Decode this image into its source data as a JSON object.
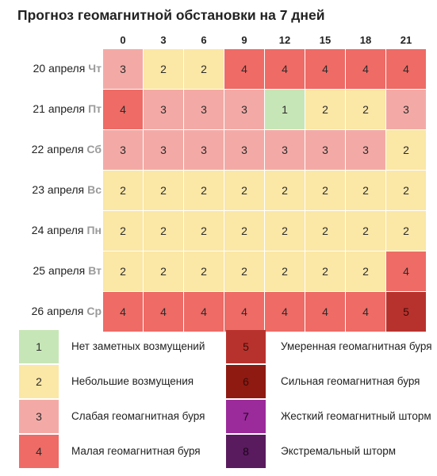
{
  "chart_data": {
    "type": "heatmap",
    "title": "Прогноз геомагнитной обстановки на 7 дней",
    "hours": [
      "0",
      "3",
      "6",
      "9",
      "12",
      "15",
      "18",
      "21"
    ],
    "rows": [
      {
        "date": "20 апреля",
        "weekday": "Чт",
        "values": [
          3,
          2,
          2,
          4,
          4,
          4,
          4,
          4
        ]
      },
      {
        "date": "21 апреля",
        "weekday": "Пт",
        "values": [
          4,
          3,
          3,
          3,
          1,
          2,
          2,
          3
        ]
      },
      {
        "date": "22 апреля",
        "weekday": "Сб",
        "values": [
          3,
          3,
          3,
          3,
          3,
          3,
          3,
          2
        ]
      },
      {
        "date": "23 апреля",
        "weekday": "Вс",
        "values": [
          2,
          2,
          2,
          2,
          2,
          2,
          2,
          2
        ]
      },
      {
        "date": "24 апреля",
        "weekday": "Пн",
        "values": [
          2,
          2,
          2,
          2,
          2,
          2,
          2,
          2
        ]
      },
      {
        "date": "25 апреля",
        "weekday": "Вт",
        "values": [
          2,
          2,
          2,
          2,
          2,
          2,
          2,
          4
        ]
      },
      {
        "date": "26 апреля",
        "weekday": "Ср",
        "values": [
          4,
          4,
          4,
          4,
          4,
          4,
          4,
          5
        ]
      }
    ],
    "legend": [
      {
        "level": "1",
        "label": "Нет заметных возмущений",
        "color": "#c7e6b7"
      },
      {
        "level": "2",
        "label": "Небольшие возмущения",
        "color": "#fbe7a6"
      },
      {
        "level": "3",
        "label": "Слабая геомагнитная буря",
        "color": "#f3aaa6"
      },
      {
        "level": "4",
        "label": "Малая геомагнитная буря",
        "color": "#ee6b66"
      },
      {
        "level": "5",
        "label": "Умеренная геомагнитная буря",
        "color": "#b8322d"
      },
      {
        "level": "6",
        "label": "Сильная геомагнитная буря",
        "color": "#8e1a12"
      },
      {
        "level": "7",
        "label": "Жесткий геомагнитный шторм",
        "color": "#9b2a9b"
      },
      {
        "level": "8",
        "label": "Экстремальный шторм",
        "color": "#5a1a5e"
      }
    ],
    "colors": {
      "1": "#c7e6b7",
      "2": "#fbe7a6",
      "3": "#f3aaa6",
      "4": "#ee6b66",
      "5": "#b8322d",
      "6": "#8e1a12",
      "7": "#9b2a9b",
      "8": "#5a1a5e"
    }
  }
}
